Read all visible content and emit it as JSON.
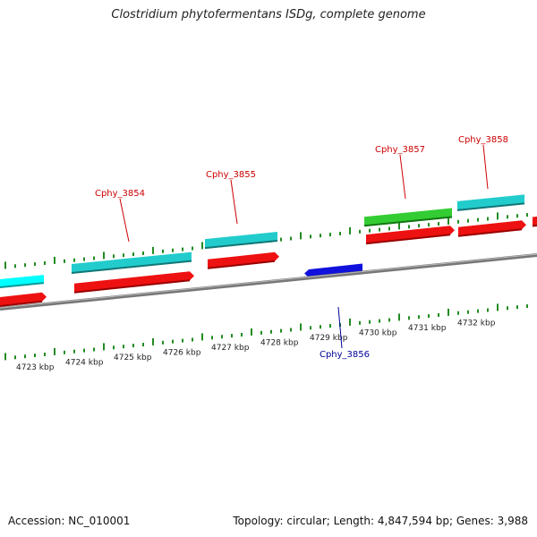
{
  "title": "Clostridium phytofermentans ISDg, complete genome",
  "footer": {
    "accession": "Accession: NC_010001",
    "summary": "Topology: circular; Length: 4,847,594 bp; Genes: 3,988"
  },
  "colors": {
    "forward_cds": "#ee1111",
    "forward_cds_dark": "#990000",
    "reverse_cds": "#1111dd",
    "gene_cyan": "#22cccc",
    "gene_cyan_bright": "#00ffff",
    "gene_green": "#33cc33",
    "backbone": "#888888",
    "tick": "#228b22",
    "label_forward": "#cc0000",
    "label_reverse": "#000099"
  },
  "scale_labels": [
    "4723 kbp",
    "4724 kbp",
    "4725 kbp",
    "4726 kbp",
    "4727 kbp",
    "4728 kbp",
    "4729 kbp",
    "4730 kbp",
    "4731 kbp",
    "4732 kbp"
  ],
  "gene_labels": [
    {
      "name": "Cphy_3854",
      "strand": "forward"
    },
    {
      "name": "Cphy_3855",
      "strand": "forward"
    },
    {
      "name": "Cphy_3856",
      "strand": "reverse"
    },
    {
      "name": "Cphy_3857",
      "strand": "forward"
    },
    {
      "name": "Cphy_3858",
      "strand": "forward"
    }
  ]
}
